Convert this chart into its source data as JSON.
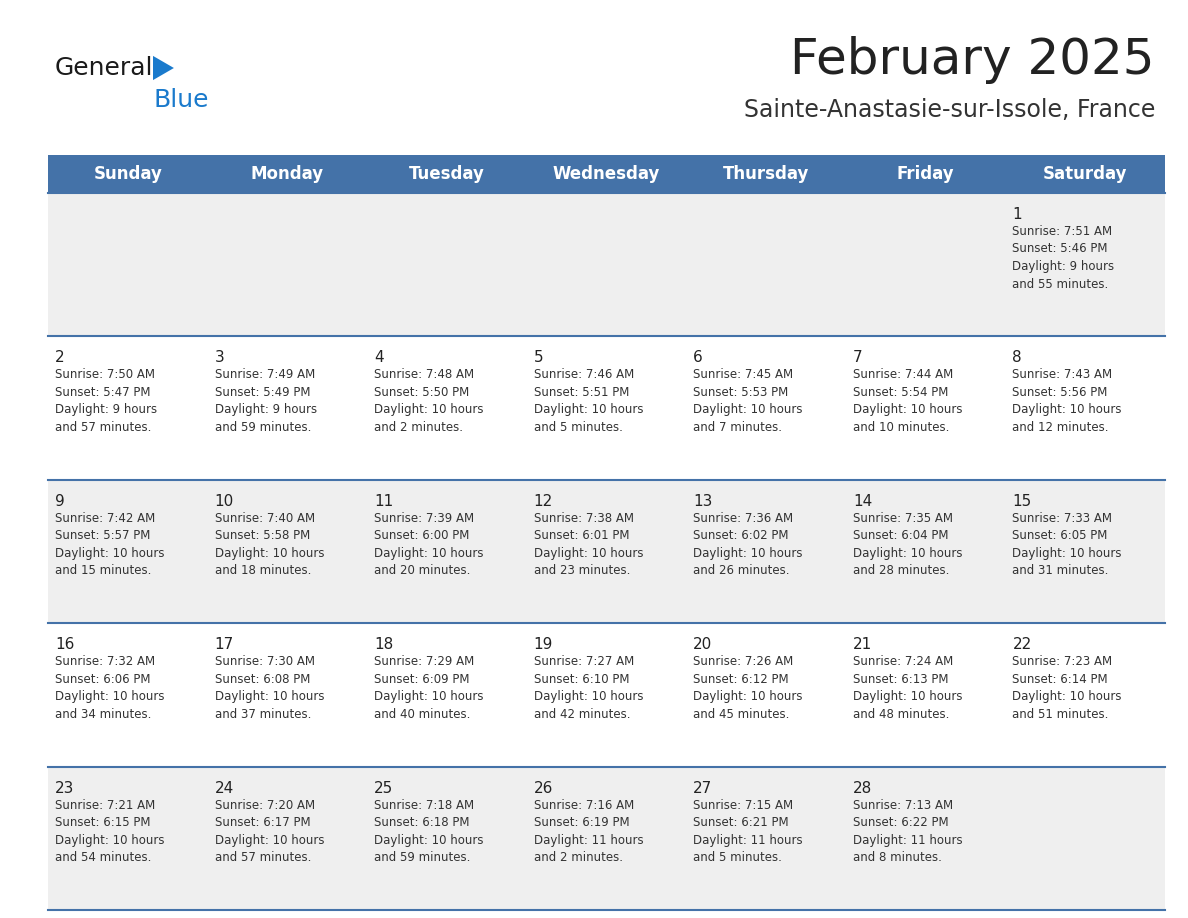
{
  "title": "February 2025",
  "subtitle": "Sainte-Anastasie-sur-Issole, France",
  "header_bg": "#4472a8",
  "header_text": "#ffffff",
  "row_bg_light": "#efefef",
  "row_bg_white": "#ffffff",
  "separator_color": "#4472a8",
  "day_headers": [
    "Sunday",
    "Monday",
    "Tuesday",
    "Wednesday",
    "Thursday",
    "Friday",
    "Saturday"
  ],
  "title_color": "#222222",
  "subtitle_color": "#333333",
  "day_number_color": "#222222",
  "cell_text_color": "#333333",
  "calendar_data": [
    [
      {
        "day": null,
        "info": null
      },
      {
        "day": null,
        "info": null
      },
      {
        "day": null,
        "info": null
      },
      {
        "day": null,
        "info": null
      },
      {
        "day": null,
        "info": null
      },
      {
        "day": null,
        "info": null
      },
      {
        "day": "1",
        "info": "Sunrise: 7:51 AM\nSunset: 5:46 PM\nDaylight: 9 hours\nand 55 minutes."
      }
    ],
    [
      {
        "day": "2",
        "info": "Sunrise: 7:50 AM\nSunset: 5:47 PM\nDaylight: 9 hours\nand 57 minutes."
      },
      {
        "day": "3",
        "info": "Sunrise: 7:49 AM\nSunset: 5:49 PM\nDaylight: 9 hours\nand 59 minutes."
      },
      {
        "day": "4",
        "info": "Sunrise: 7:48 AM\nSunset: 5:50 PM\nDaylight: 10 hours\nand 2 minutes."
      },
      {
        "day": "5",
        "info": "Sunrise: 7:46 AM\nSunset: 5:51 PM\nDaylight: 10 hours\nand 5 minutes."
      },
      {
        "day": "6",
        "info": "Sunrise: 7:45 AM\nSunset: 5:53 PM\nDaylight: 10 hours\nand 7 minutes."
      },
      {
        "day": "7",
        "info": "Sunrise: 7:44 AM\nSunset: 5:54 PM\nDaylight: 10 hours\nand 10 minutes."
      },
      {
        "day": "8",
        "info": "Sunrise: 7:43 AM\nSunset: 5:56 PM\nDaylight: 10 hours\nand 12 minutes."
      }
    ],
    [
      {
        "day": "9",
        "info": "Sunrise: 7:42 AM\nSunset: 5:57 PM\nDaylight: 10 hours\nand 15 minutes."
      },
      {
        "day": "10",
        "info": "Sunrise: 7:40 AM\nSunset: 5:58 PM\nDaylight: 10 hours\nand 18 minutes."
      },
      {
        "day": "11",
        "info": "Sunrise: 7:39 AM\nSunset: 6:00 PM\nDaylight: 10 hours\nand 20 minutes."
      },
      {
        "day": "12",
        "info": "Sunrise: 7:38 AM\nSunset: 6:01 PM\nDaylight: 10 hours\nand 23 minutes."
      },
      {
        "day": "13",
        "info": "Sunrise: 7:36 AM\nSunset: 6:02 PM\nDaylight: 10 hours\nand 26 minutes."
      },
      {
        "day": "14",
        "info": "Sunrise: 7:35 AM\nSunset: 6:04 PM\nDaylight: 10 hours\nand 28 minutes."
      },
      {
        "day": "15",
        "info": "Sunrise: 7:33 AM\nSunset: 6:05 PM\nDaylight: 10 hours\nand 31 minutes."
      }
    ],
    [
      {
        "day": "16",
        "info": "Sunrise: 7:32 AM\nSunset: 6:06 PM\nDaylight: 10 hours\nand 34 minutes."
      },
      {
        "day": "17",
        "info": "Sunrise: 7:30 AM\nSunset: 6:08 PM\nDaylight: 10 hours\nand 37 minutes."
      },
      {
        "day": "18",
        "info": "Sunrise: 7:29 AM\nSunset: 6:09 PM\nDaylight: 10 hours\nand 40 minutes."
      },
      {
        "day": "19",
        "info": "Sunrise: 7:27 AM\nSunset: 6:10 PM\nDaylight: 10 hours\nand 42 minutes."
      },
      {
        "day": "20",
        "info": "Sunrise: 7:26 AM\nSunset: 6:12 PM\nDaylight: 10 hours\nand 45 minutes."
      },
      {
        "day": "21",
        "info": "Sunrise: 7:24 AM\nSunset: 6:13 PM\nDaylight: 10 hours\nand 48 minutes."
      },
      {
        "day": "22",
        "info": "Sunrise: 7:23 AM\nSunset: 6:14 PM\nDaylight: 10 hours\nand 51 minutes."
      }
    ],
    [
      {
        "day": "23",
        "info": "Sunrise: 7:21 AM\nSunset: 6:15 PM\nDaylight: 10 hours\nand 54 minutes."
      },
      {
        "day": "24",
        "info": "Sunrise: 7:20 AM\nSunset: 6:17 PM\nDaylight: 10 hours\nand 57 minutes."
      },
      {
        "day": "25",
        "info": "Sunrise: 7:18 AM\nSunset: 6:18 PM\nDaylight: 10 hours\nand 59 minutes."
      },
      {
        "day": "26",
        "info": "Sunrise: 7:16 AM\nSunset: 6:19 PM\nDaylight: 11 hours\nand 2 minutes."
      },
      {
        "day": "27",
        "info": "Sunrise: 7:15 AM\nSunset: 6:21 PM\nDaylight: 11 hours\nand 5 minutes."
      },
      {
        "day": "28",
        "info": "Sunrise: 7:13 AM\nSunset: 6:22 PM\nDaylight: 11 hours\nand 8 minutes."
      },
      {
        "day": null,
        "info": null
      }
    ]
  ],
  "logo_text_general": "General",
  "logo_text_blue": "Blue",
  "logo_general_color": "#1a1a1a",
  "logo_blue_color": "#1a7acc",
  "logo_triangle_color": "#1a7acc"
}
